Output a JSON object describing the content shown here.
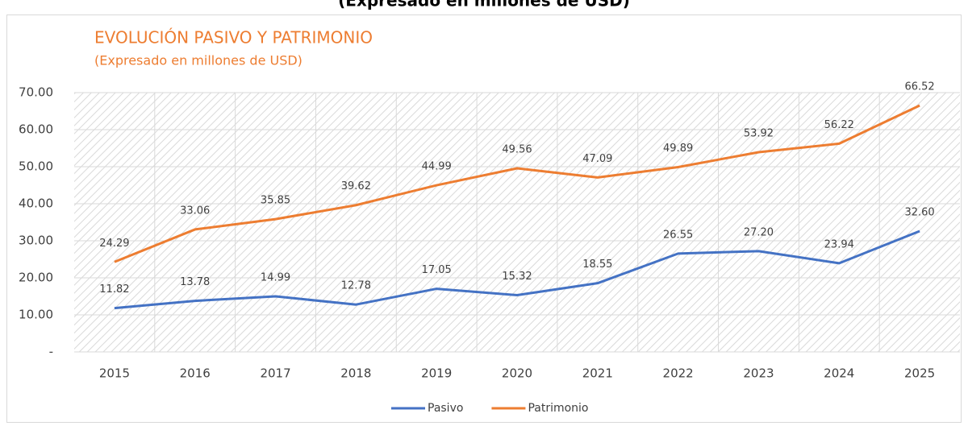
{
  "top_caption": "(Expresado en millones de USD)",
  "chart_data": {
    "type": "line",
    "title": "EVOLUCIÓN PASIVO Y PATRIMONIO",
    "subtitle": "(Expresado en millones de USD)",
    "categories": [
      "2015",
      "2016",
      "2017",
      "2018",
      "2019",
      "2020",
      "2021",
      "2022",
      "2023",
      "2024",
      "2025"
    ],
    "series": [
      {
        "name": "Pasivo",
        "color": "#4472c4",
        "values": [
          11.82,
          13.78,
          14.99,
          12.78,
          17.05,
          15.32,
          18.55,
          26.55,
          27.2,
          23.94,
          32.6
        ],
        "value_labels": [
          "11.82",
          "13.78",
          "14.99",
          "12.78",
          "17.05",
          "15.32",
          "18.55",
          "26.55",
          "27.20",
          "23.94",
          "32.60"
        ]
      },
      {
        "name": "Patrimonio",
        "color": "#ed7d31",
        "values": [
          24.29,
          33.06,
          35.85,
          39.62,
          44.99,
          49.56,
          47.09,
          49.89,
          53.92,
          56.22,
          66.52
        ],
        "value_labels": [
          "24.29",
          "33.06",
          "35.85",
          "39.62",
          "44.99",
          "49.56",
          "47.09",
          "49.89",
          "53.92",
          "56.22",
          "66.52"
        ]
      }
    ],
    "ylim": [
      0,
      70
    ],
    "yticks": [
      {
        "value": 0,
        "label": "-"
      },
      {
        "value": 10,
        "label": "10.00"
      },
      {
        "value": 20,
        "label": "20.00"
      },
      {
        "value": 30,
        "label": "30.00"
      },
      {
        "value": 40,
        "label": "40.00"
      },
      {
        "value": 50,
        "label": "50.00"
      },
      {
        "value": 60,
        "label": "60.00"
      },
      {
        "value": 70,
        "label": "70.00"
      }
    ],
    "grid": true,
    "legend": "bottom"
  }
}
